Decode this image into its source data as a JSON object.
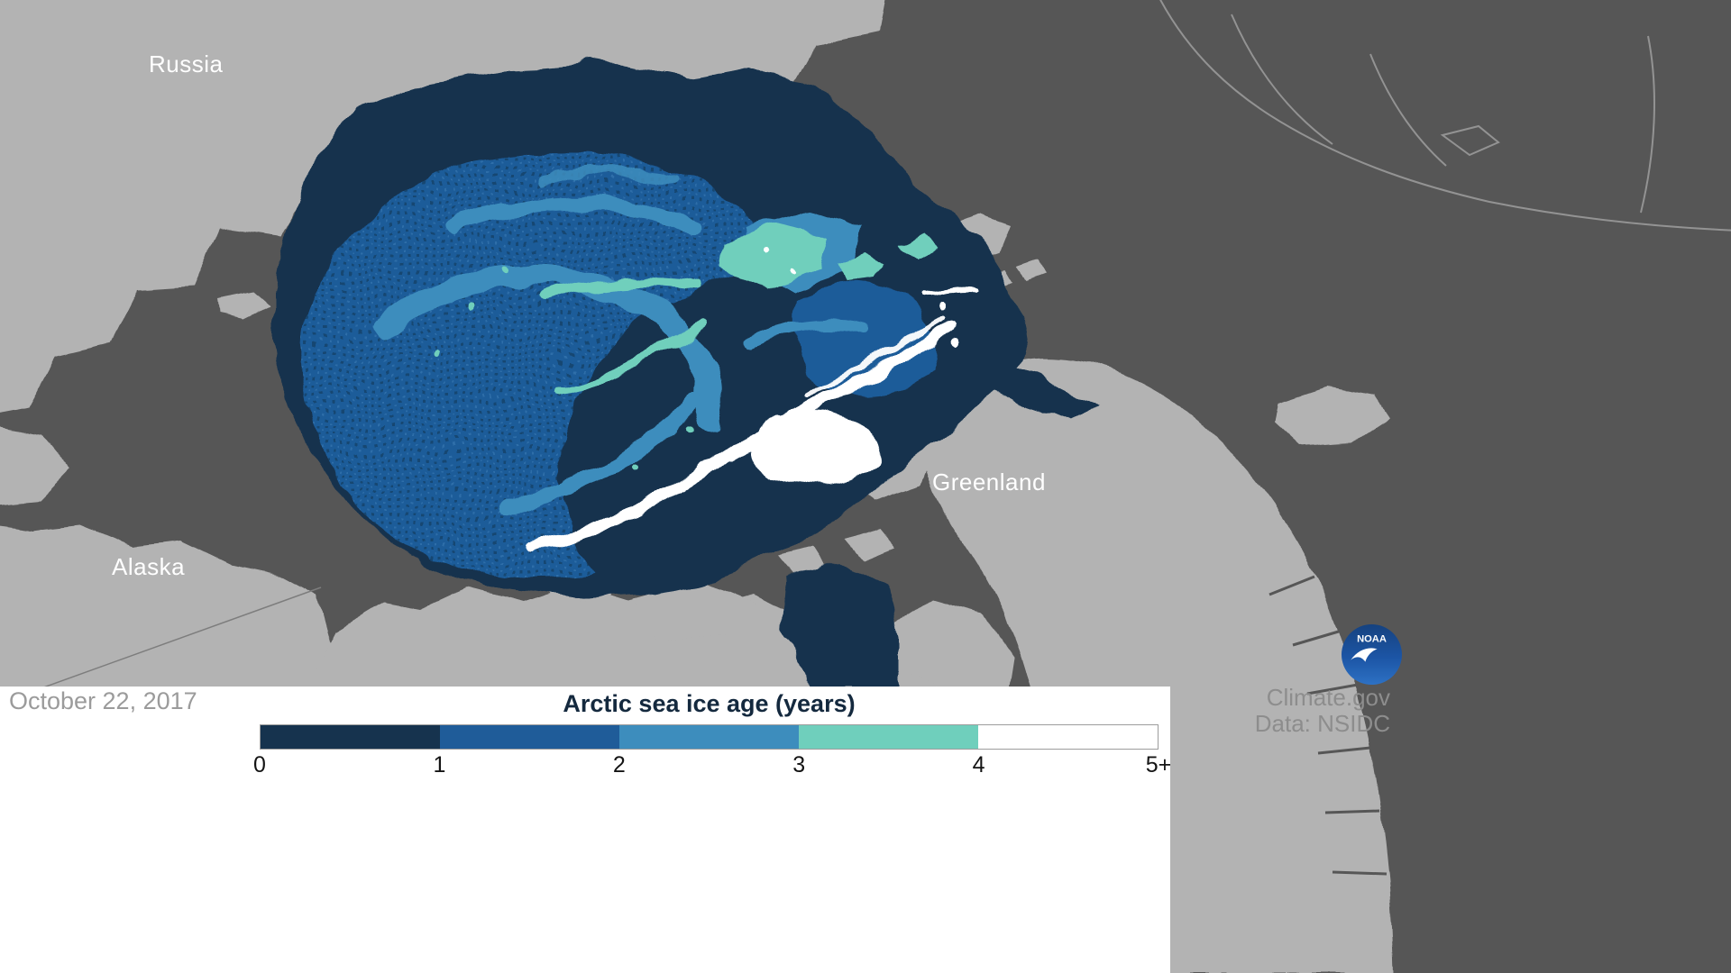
{
  "map": {
    "labels": {
      "russia": "Russia",
      "alaska": "Alaska",
      "greenland": "Greenland"
    },
    "colors": {
      "ocean": "#565656",
      "land": "#b3b3b3",
      "coast_border_line": "#9a9a9a"
    }
  },
  "legend": {
    "title": "Arctic sea ice age (years)",
    "tick_labels": [
      "0",
      "1",
      "2",
      "3",
      "4",
      "5+"
    ],
    "segment_colors": [
      "#16334e",
      "#1f5c99",
      "#3d8dbd",
      "#6fcfbc",
      "#ffffff"
    ]
  },
  "footer": {
    "date": "October 22, 2017",
    "site": "Climate.gov",
    "data_source": "Data: NSIDC",
    "noaa_logo_text": "NOAA"
  }
}
